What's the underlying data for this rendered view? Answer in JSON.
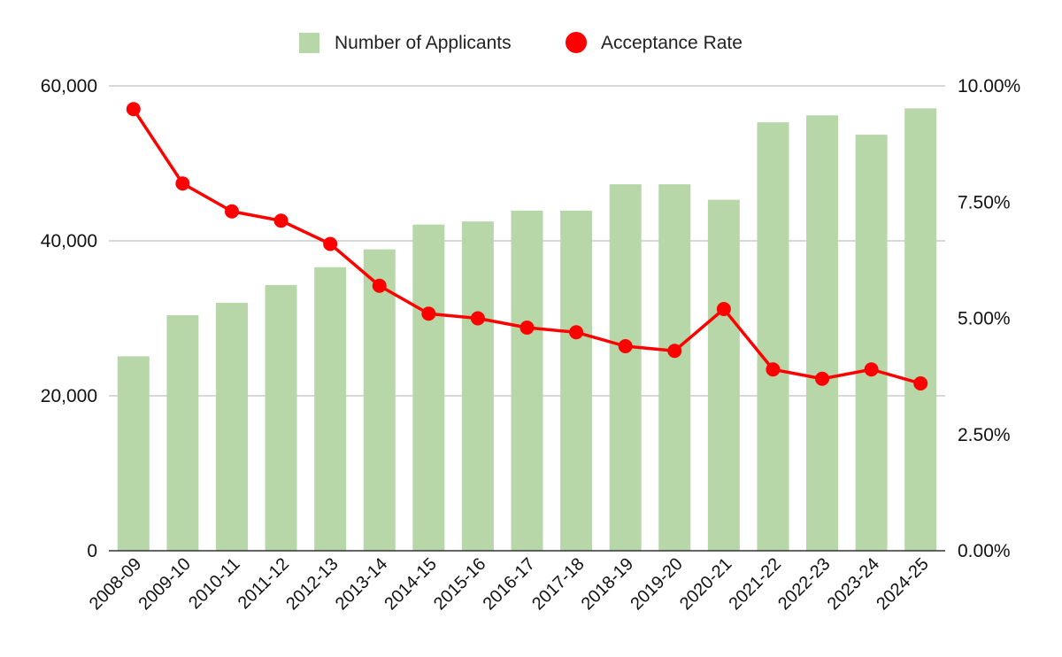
{
  "chart_data": {
    "type": "bar",
    "categories": [
      "2008-09",
      "2009-10",
      "2010-11",
      "2011-12",
      "2012-13",
      "2013-14",
      "2014-15",
      "2015-16",
      "2016-17",
      "2017-18",
      "2018-19",
      "2019-20",
      "2020-21",
      "2021-22",
      "2022-23",
      "2023-24",
      "2024-25"
    ],
    "series": [
      {
        "name": "Number of Applicants",
        "type": "bar",
        "axis": "left",
        "color": "#b7d7a8",
        "values": [
          25100,
          30400,
          32000,
          34300,
          36600,
          38900,
          42100,
          42500,
          43900,
          43900,
          47300,
          47300,
          45300,
          55300,
          56200,
          53700,
          57100
        ]
      },
      {
        "name": "Acceptance Rate",
        "type": "line",
        "axis": "right",
        "color": "#ff0000",
        "values": [
          0.095,
          0.079,
          0.073,
          0.071,
          0.066,
          0.057,
          0.051,
          0.05,
          0.048,
          0.047,
          0.044,
          0.043,
          0.052,
          0.039,
          0.037,
          0.039,
          0.036
        ]
      }
    ],
    "left_axis": {
      "ylim": [
        0,
        60000
      ],
      "ticks": [
        "0",
        "20,000",
        "40,000",
        "60,000"
      ]
    },
    "right_axis": {
      "ylim": [
        0,
        0.1
      ],
      "ticks": [
        "0.00%",
        "2.50%",
        "5.00%",
        "7.50%",
        "10.00%"
      ]
    },
    "grid": true,
    "legend_position": "top-center",
    "title": "",
    "xlabel": "",
    "ylabel": ""
  }
}
